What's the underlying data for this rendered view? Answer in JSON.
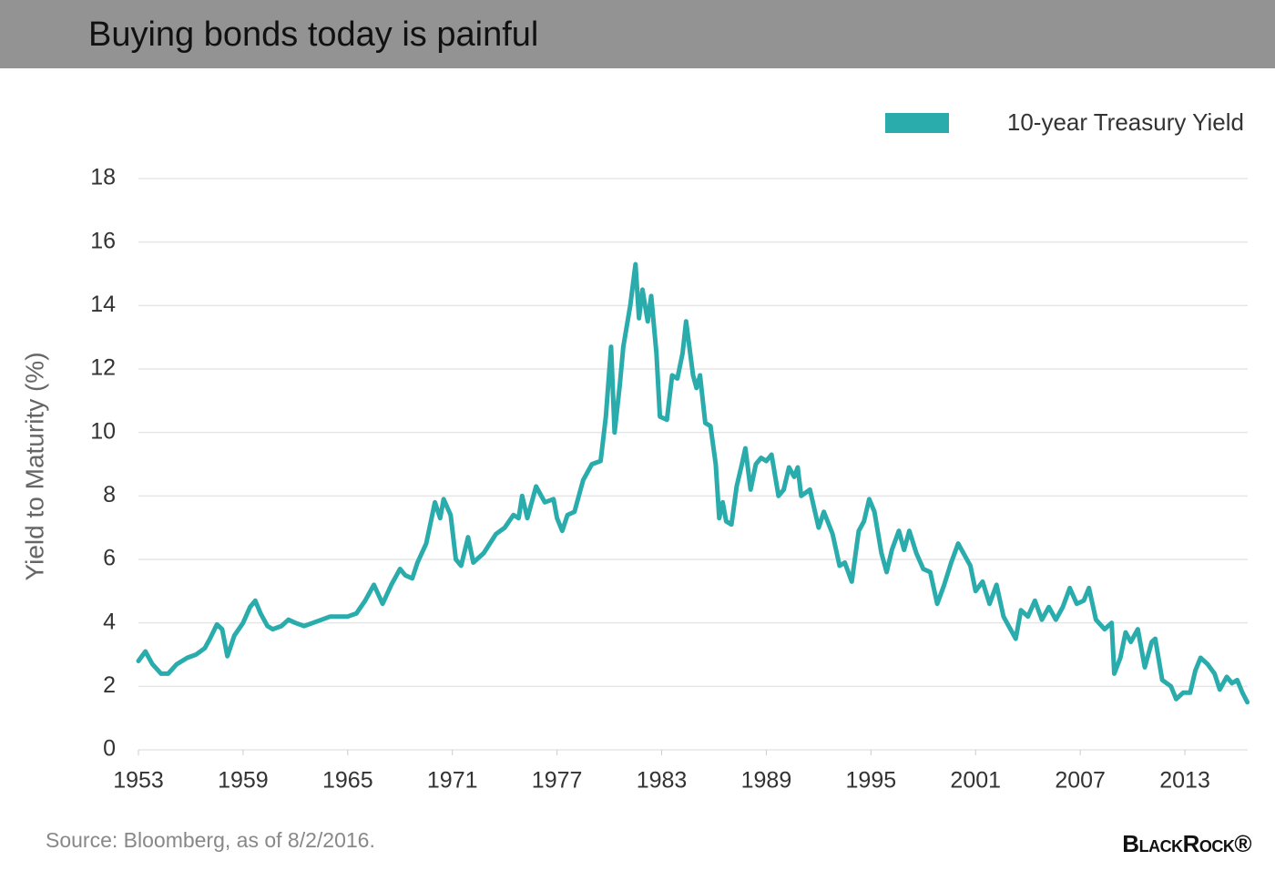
{
  "chart_data": {
    "type": "line",
    "title": "Buying bonds today is painful",
    "y_label": "Yield to Maturity (%)",
    "source": "Source: Bloomberg, as of 8/2/2016.",
    "logo": "BlackRock®",
    "legend": "top-right",
    "grid": true,
    "xlim": [
      1953,
      2016.6
    ],
    "xticks": [
      1953,
      1959,
      1965,
      1971,
      1977,
      1983,
      1989,
      1995,
      2001,
      2007,
      2013
    ],
    "ylim": [
      0,
      18
    ],
    "yticks": [
      0,
      2,
      4,
      6,
      8,
      10,
      12,
      14,
      16,
      18
    ],
    "x": [
      1953.0,
      1953.4,
      1953.8,
      1954.3,
      1954.7,
      1955.2,
      1955.8,
      1956.3,
      1956.8,
      1957.1,
      1957.5,
      1957.8,
      1958.1,
      1958.5,
      1959.0,
      1959.4,
      1959.7,
      1960.0,
      1960.4,
      1960.7,
      1961.2,
      1961.6,
      1962.0,
      1962.5,
      1963.0,
      1963.5,
      1964.0,
      1964.5,
      1965.0,
      1965.5,
      1966.0,
      1966.5,
      1967.0,
      1967.5,
      1968.0,
      1968.3,
      1968.7,
      1969.0,
      1969.5,
      1970.0,
      1970.3,
      1970.5,
      1970.9,
      1971.2,
      1971.5,
      1971.9,
      1972.2,
      1972.8,
      1973.5,
      1974.0,
      1974.5,
      1974.8,
      1975.0,
      1975.3,
      1975.8,
      1976.3,
      1976.8,
      1977.0,
      1977.3,
      1977.6,
      1978.0,
      1978.5,
      1979.0,
      1979.5,
      1979.8,
      1980.1,
      1980.3,
      1980.6,
      1980.8,
      1981.2,
      1981.5,
      1981.7,
      1981.9,
      1982.2,
      1982.4,
      1982.7,
      1982.9,
      1983.3,
      1983.6,
      1983.9,
      1984.2,
      1984.4,
      1984.8,
      1985.0,
      1985.2,
      1985.5,
      1985.8,
      1986.1,
      1986.3,
      1986.5,
      1986.7,
      1987.0,
      1987.3,
      1987.6,
      1987.8,
      1988.1,
      1988.4,
      1988.7,
      1989.0,
      1989.3,
      1989.7,
      1990.0,
      1990.3,
      1990.6,
      1990.8,
      1991.0,
      1991.5,
      1992.0,
      1992.3,
      1992.8,
      1993.2,
      1993.5,
      1993.9,
      1994.3,
      1994.6,
      1994.9,
      1995.2,
      1995.6,
      1995.9,
      1996.2,
      1996.6,
      1996.9,
      1997.2,
      1997.6,
      1998.0,
      1998.4,
      1998.8,
      1999.2,
      1999.6,
      2000.0,
      2000.3,
      2000.7,
      2001.0,
      2001.4,
      2001.8,
      2002.2,
      2002.6,
      2002.9,
      2003.3,
      2003.6,
      2004.0,
      2004.4,
      2004.8,
      2005.2,
      2005.6,
      2006.0,
      2006.4,
      2006.8,
      2007.2,
      2007.5,
      2007.9,
      2008.4,
      2008.8,
      2008.95,
      2009.3,
      2009.6,
      2009.9,
      2010.3,
      2010.7,
      2011.1,
      2011.3,
      2011.7,
      2012.2,
      2012.5,
      2012.9,
      2013.3,
      2013.6,
      2013.9,
      2014.3,
      2014.7,
      2015.0,
      2015.4,
      2015.7,
      2016.0,
      2016.3,
      2016.58
    ],
    "series": [
      {
        "name": "10-year Treasury Yield",
        "color": "#2aacac",
        "values": [
          2.8,
          3.1,
          2.7,
          2.4,
          2.4,
          2.7,
          2.9,
          3.0,
          3.2,
          3.5,
          3.95,
          3.8,
          2.95,
          3.6,
          4.0,
          4.5,
          4.7,
          4.3,
          3.9,
          3.8,
          3.9,
          4.1,
          4.0,
          3.9,
          4.0,
          4.1,
          4.2,
          4.2,
          4.2,
          4.3,
          4.7,
          5.2,
          4.6,
          5.2,
          5.7,
          5.5,
          5.4,
          5.9,
          6.5,
          7.8,
          7.3,
          7.9,
          7.4,
          6.0,
          5.8,
          6.7,
          5.9,
          6.2,
          6.8,
          7.0,
          7.4,
          7.3,
          8.0,
          7.3,
          8.3,
          7.8,
          7.9,
          7.3,
          6.9,
          7.4,
          7.5,
          8.5,
          9.0,
          9.1,
          10.5,
          12.7,
          10.0,
          11.5,
          12.7,
          14.0,
          15.3,
          13.6,
          14.5,
          13.5,
          14.3,
          12.5,
          10.5,
          10.4,
          11.8,
          11.7,
          12.5,
          13.5,
          11.8,
          11.4,
          11.8,
          10.3,
          10.2,
          9.0,
          7.3,
          7.8,
          7.2,
          7.1,
          8.3,
          9.0,
          9.5,
          8.2,
          9.0,
          9.2,
          9.1,
          9.3,
          8.0,
          8.2,
          8.9,
          8.6,
          8.9,
          8.0,
          8.2,
          7.0,
          7.5,
          6.8,
          5.8,
          5.9,
          5.3,
          6.9,
          7.2,
          7.9,
          7.5,
          6.2,
          5.6,
          6.3,
          6.9,
          6.3,
          6.9,
          6.2,
          5.7,
          5.6,
          4.6,
          5.2,
          5.9,
          6.5,
          6.2,
          5.8,
          5.0,
          5.3,
          4.6,
          5.2,
          4.2,
          3.9,
          3.5,
          4.4,
          4.2,
          4.7,
          4.1,
          4.5,
          4.1,
          4.5,
          5.1,
          4.6,
          4.7,
          5.1,
          4.1,
          3.8,
          4.0,
          2.4,
          2.9,
          3.7,
          3.4,
          3.8,
          2.6,
          3.4,
          3.5,
          2.2,
          2.0,
          1.6,
          1.8,
          1.8,
          2.5,
          2.9,
          2.7,
          2.4,
          1.9,
          2.3,
          2.1,
          2.2,
          1.8,
          1.5
        ]
      }
    ]
  }
}
